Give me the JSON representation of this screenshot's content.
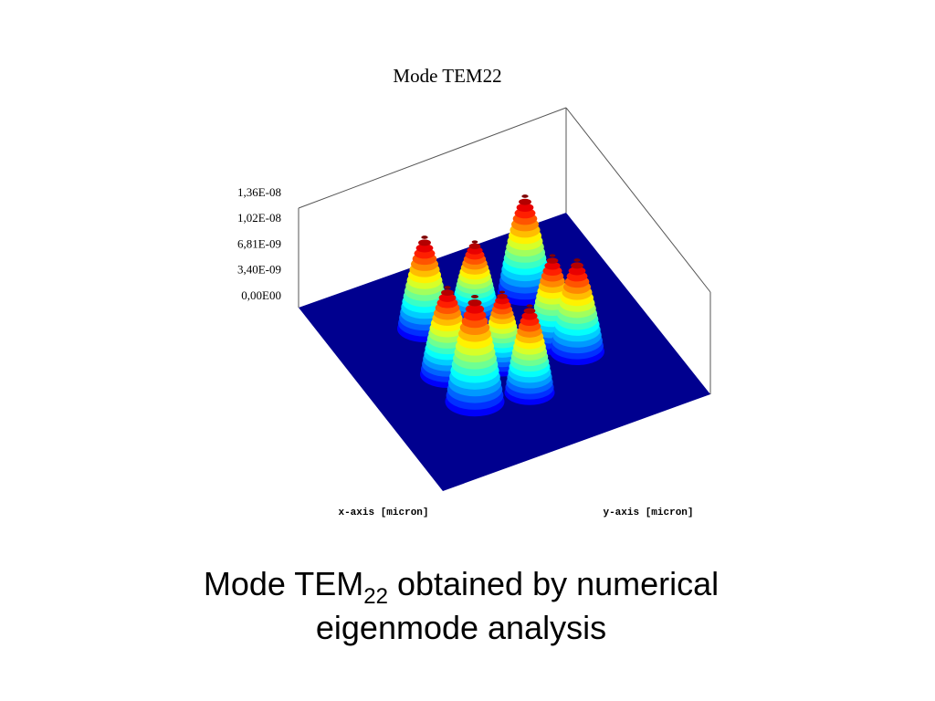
{
  "figure": {
    "title": "Mode TEM22",
    "z_tick_labels": [
      "1,36E-08",
      "1,02E-08",
      "6,81E-09",
      "3,40E-09",
      "0,00E00"
    ],
    "x_axis_label": "x-axis [micron]",
    "y_axis_label": "y-axis [micron]"
  },
  "caption": {
    "line1_before": "Mode TEM",
    "line1_subscript": "22",
    "line1_after": " obtained by numerical",
    "line2": "eigenmode analysis"
  }
}
